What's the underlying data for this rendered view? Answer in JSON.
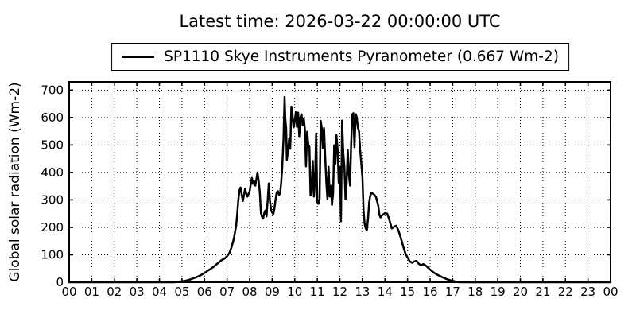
{
  "window": {
    "background": "#ffffff",
    "foreground": "#000000"
  },
  "chart_data": {
    "type": "line",
    "title": "Latest time: 2026-03-22 00:00:00 UTC",
    "xlabel": "",
    "ylabel": "Global solar radiation (Wm-2)",
    "xlim": [
      0,
      24
    ],
    "ylim": [
      0,
      730
    ],
    "grid": true,
    "grid_style": "dotted",
    "legend_position": "upper center, above plot area",
    "current_value_wm2": "0.667",
    "xticks": {
      "positions": [
        0,
        1,
        2,
        3,
        4,
        5,
        6,
        7,
        8,
        9,
        10,
        11,
        12,
        13,
        14,
        15,
        16,
        17,
        18,
        19,
        20,
        21,
        22,
        23,
        24
      ],
      "labels": [
        "00",
        "01",
        "02",
        "03",
        "04",
        "05",
        "06",
        "07",
        "08",
        "09",
        "10",
        "11",
        "12",
        "13",
        "14",
        "15",
        "16",
        "17",
        "18",
        "19",
        "20",
        "21",
        "22",
        "23",
        "00"
      ]
    },
    "yticks": [
      0,
      100,
      200,
      300,
      400,
      500,
      600,
      700
    ],
    "series": [
      {
        "name": "SP1110 Skye Instruments Pyranometer (0.667 Wm-2)",
        "color": "#000000",
        "linewidth": 2.5,
        "points": [
          [
            0,
            0
          ],
          [
            4.6,
            0
          ],
          [
            4.8,
            1
          ],
          [
            5,
            3
          ],
          [
            5.2,
            6
          ],
          [
            5.4,
            11
          ],
          [
            5.6,
            17
          ],
          [
            5.8,
            24
          ],
          [
            6,
            34
          ],
          [
            6.2,
            45
          ],
          [
            6.4,
            56
          ],
          [
            6.6,
            70
          ],
          [
            6.75,
            80
          ],
          [
            6.9,
            87
          ],
          [
            7,
            95
          ],
          [
            7.1,
            106
          ],
          [
            7.2,
            128
          ],
          [
            7.3,
            158
          ],
          [
            7.4,
            205
          ],
          [
            7.45,
            248
          ],
          [
            7.5,
            300
          ],
          [
            7.55,
            335
          ],
          [
            7.6,
            345
          ],
          [
            7.65,
            318
          ],
          [
            7.7,
            296
          ],
          [
            7.75,
            318
          ],
          [
            7.8,
            340
          ],
          [
            7.85,
            324
          ],
          [
            7.9,
            312
          ],
          [
            8,
            331
          ],
          [
            8.05,
            356
          ],
          [
            8.1,
            380
          ],
          [
            8.15,
            358
          ],
          [
            8.2,
            368
          ],
          [
            8.25,
            352
          ],
          [
            8.3,
            374
          ],
          [
            8.35,
            400
          ],
          [
            8.4,
            368
          ],
          [
            8.45,
            328
          ],
          [
            8.5,
            252
          ],
          [
            8.55,
            238
          ],
          [
            8.6,
            232
          ],
          [
            8.65,
            252
          ],
          [
            8.7,
            262
          ],
          [
            8.75,
            240
          ],
          [
            8.8,
            300
          ],
          [
            8.85,
            360
          ],
          [
            8.9,
            298
          ],
          [
            8.95,
            262
          ],
          [
            9,
            254
          ],
          [
            9.05,
            248
          ],
          [
            9.1,
            268
          ],
          [
            9.15,
            300
          ],
          [
            9.2,
            326
          ],
          [
            9.25,
            332
          ],
          [
            9.3,
            318
          ],
          [
            9.35,
            322
          ],
          [
            9.4,
            362
          ],
          [
            9.45,
            425
          ],
          [
            9.5,
            523
          ],
          [
            9.55,
            675
          ],
          [
            9.58,
            598
          ],
          [
            9.62,
            558
          ],
          [
            9.65,
            445
          ],
          [
            9.7,
            476
          ],
          [
            9.75,
            524
          ],
          [
            9.8,
            486
          ],
          [
            9.85,
            640
          ],
          [
            9.9,
            610
          ],
          [
            9.95,
            564
          ],
          [
            10,
            586
          ],
          [
            10.05,
            622
          ],
          [
            10.1,
            566
          ],
          [
            10.15,
            618
          ],
          [
            10.2,
            532
          ],
          [
            10.25,
            600
          ],
          [
            10.3,
            612
          ],
          [
            10.35,
            572
          ],
          [
            10.4,
            597
          ],
          [
            10.45,
            557
          ],
          [
            10.5,
            422
          ],
          [
            10.55,
            548
          ],
          [
            10.6,
            502
          ],
          [
            10.65,
            494
          ],
          [
            10.7,
            316
          ],
          [
            10.75,
            326
          ],
          [
            10.8,
            442
          ],
          [
            10.85,
            312
          ],
          [
            10.9,
            372
          ],
          [
            10.95,
            542
          ],
          [
            11,
            292
          ],
          [
            11.05,
            286
          ],
          [
            11.1,
            302
          ],
          [
            11.15,
            588
          ],
          [
            11.2,
            561
          ],
          [
            11.25,
            488
          ],
          [
            11.3,
            561
          ],
          [
            11.35,
            452
          ],
          [
            11.4,
            362
          ],
          [
            11.45,
            303
          ],
          [
            11.5,
            421
          ],
          [
            11.55,
            312
          ],
          [
            11.6,
            351
          ],
          [
            11.65,
            282
          ],
          [
            11.7,
            322
          ],
          [
            11.75,
            499
          ],
          [
            11.8,
            432
          ],
          [
            11.85,
            536
          ],
          [
            11.9,
            482
          ],
          [
            11.95,
            362
          ],
          [
            12,
            421
          ],
          [
            12.05,
            222
          ],
          [
            12.1,
            589
          ],
          [
            12.15,
            472
          ],
          [
            12.2,
            421
          ],
          [
            12.25,
            302
          ],
          [
            12.3,
            361
          ],
          [
            12.35,
            482
          ],
          [
            12.4,
            392
          ],
          [
            12.45,
            352
          ],
          [
            12.5,
            502
          ],
          [
            12.55,
            611
          ],
          [
            12.6,
            616
          ],
          [
            12.65,
            492
          ],
          [
            12.7,
            612
          ],
          [
            12.75,
            601
          ],
          [
            12.8,
            562
          ],
          [
            12.85,
            551
          ],
          [
            12.9,
            482
          ],
          [
            12.95,
            432
          ],
          [
            13,
            382
          ],
          [
            13.05,
            262
          ],
          [
            13.1,
            212
          ],
          [
            13.15,
            196
          ],
          [
            13.2,
            190
          ],
          [
            13.25,
            232
          ],
          [
            13.3,
            292
          ],
          [
            13.35,
            316
          ],
          [
            13.4,
            326
          ],
          [
            13.5,
            321
          ],
          [
            13.6,
            311
          ],
          [
            13.7,
            281
          ],
          [
            13.75,
            246
          ],
          [
            13.8,
            236
          ],
          [
            13.9,
            246
          ],
          [
            14,
            252
          ],
          [
            14.1,
            250
          ],
          [
            14.2,
            226
          ],
          [
            14.3,
            196
          ],
          [
            14.4,
            202
          ],
          [
            14.5,
            206
          ],
          [
            14.6,
            188
          ],
          [
            14.7,
            162
          ],
          [
            14.8,
            132
          ],
          [
            14.9,
            106
          ],
          [
            15,
            90
          ],
          [
            15.1,
            76
          ],
          [
            15.2,
            71
          ],
          [
            15.3,
            76
          ],
          [
            15.4,
            78
          ],
          [
            15.5,
            67
          ],
          [
            15.6,
            62
          ],
          [
            15.7,
            66
          ],
          [
            15.8,
            61
          ],
          [
            15.9,
            54
          ],
          [
            16,
            46
          ],
          [
            16.15,
            36
          ],
          [
            16.3,
            28
          ],
          [
            16.45,
            22
          ],
          [
            16.6,
            16
          ],
          [
            16.75,
            11
          ],
          [
            16.9,
            7
          ],
          [
            17.05,
            4
          ],
          [
            17.2,
            1
          ],
          [
            17.35,
            0
          ],
          [
            24,
            0
          ]
        ]
      }
    ]
  }
}
